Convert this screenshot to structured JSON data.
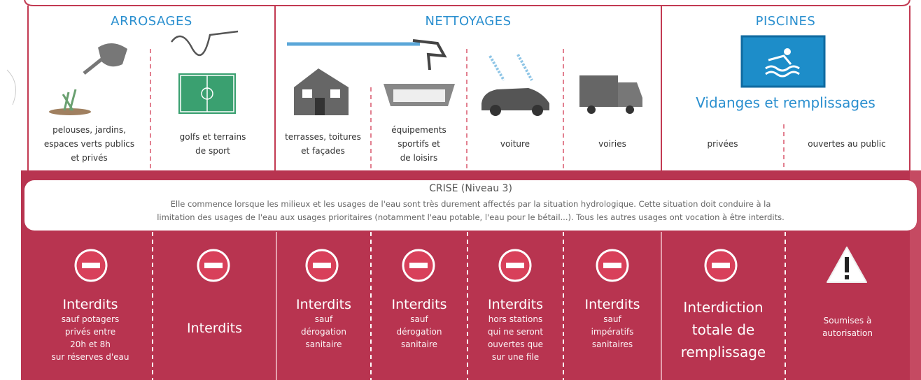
{
  "sections": [
    {
      "title": "ARROSAGES"
    },
    {
      "title": "NETTOYAGES"
    },
    {
      "title": "PISCINES",
      "subtitle": "Vidanges et remplissages"
    }
  ],
  "uses": [
    {
      "lines": [
        "pelouses, jardins,",
        "espaces verts publics",
        "et privés"
      ]
    },
    {
      "lines": [
        "golfs et terrains",
        "de sport"
      ]
    },
    {
      "lines": [
        "terrasses, toitures",
        "et façades"
      ]
    },
    {
      "lines": [
        "équipements",
        "sportifs et",
        "de loisirs"
      ]
    },
    {
      "lines": [
        "voiture"
      ]
    },
    {
      "lines": [
        "voiries"
      ]
    },
    {
      "lines": [
        "privées"
      ]
    },
    {
      "lines": [
        "ouvertes au public"
      ]
    }
  ],
  "crise": {
    "title": "CRISE (Niveau 3)",
    "lines": [
      "Elle commence lorsque les milieux et les usages de l'eau sont très durement affectés par la situation hydrologique. Cette situation doit conduire à la",
      "limitation des usages de l'eau aux usages prioritaires (notamment l'eau potable, l'eau pour le bétail...). Tous les autres usages ont vocation à être interdits."
    ]
  },
  "rules": [
    {
      "headline": [
        "Interdits"
      ],
      "details": [
        "sauf potagers",
        "privés entre",
        "20h et 8h",
        "sur réserves d'eau"
      ]
    },
    {
      "headline": [
        "Interdits"
      ],
      "details": []
    },
    {
      "headline": [
        "Interdits"
      ],
      "details": [
        "sauf",
        "dérogation",
        "sanitaire"
      ]
    },
    {
      "headline": [
        "Interdits"
      ],
      "details": [
        "sauf",
        "dérogation",
        "sanitaire"
      ]
    },
    {
      "headline": [
        "Interdits"
      ],
      "details": [
        "hors stations",
        "qui ne seront",
        "ouvertes que",
        "sur une file"
      ]
    },
    {
      "headline": [
        "Interdits"
      ],
      "details": [
        "sauf",
        "impératifs",
        "sanitaires"
      ]
    },
    {
      "headline": [
        "Interdiction",
        "totale de",
        "remplissage"
      ],
      "details": []
    },
    {
      "headline": [],
      "details": [
        "Soumises à",
        "autorisation"
      ]
    }
  ]
}
